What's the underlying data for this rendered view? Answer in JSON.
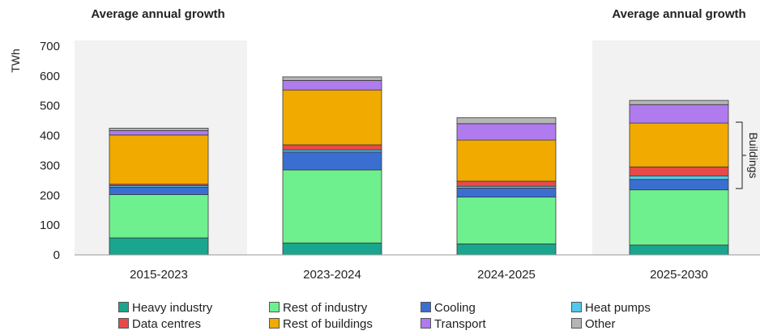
{
  "header_notes": {
    "left": "Average annual growth",
    "right": "Average annual growth"
  },
  "bracket_label": "Buildings",
  "chart_data": {
    "type": "bar",
    "stacked": true,
    "categories": [
      "2015-2023",
      "2023-2024",
      "2024-2025",
      "2025-2030"
    ],
    "ylabel": "TWh",
    "ylim": [
      0,
      700
    ],
    "yticks": [
      0,
      100,
      200,
      300,
      400,
      500,
      600,
      700
    ],
    "grid": false,
    "legend_position": "bottom",
    "series": [
      {
        "name": "Heavy industry",
        "color": "#1aa58e",
        "values": [
          57,
          40,
          37,
          33
        ]
      },
      {
        "name": "Rest of industry",
        "color": "#6ef08f",
        "values": [
          145,
          245,
          157,
          185
        ]
      },
      {
        "name": "Cooling",
        "color": "#3a6fd1",
        "values": [
          25,
          60,
          30,
          35
        ]
      },
      {
        "name": "Heat pumps",
        "color": "#53c8ea",
        "values": [
          5,
          7,
          6,
          12
        ]
      },
      {
        "name": "Data centres",
        "color": "#e84a4a",
        "values": [
          5,
          17,
          17,
          30
        ]
      },
      {
        "name": "Rest of buildings",
        "color": "#f0aa00",
        "values": [
          165,
          184,
          138,
          147
        ]
      },
      {
        "name": "Transport",
        "color": "#b07bef",
        "values": [
          15,
          32,
          55,
          62
        ]
      },
      {
        "name": "Other",
        "color": "#b5b5b5",
        "values": [
          8,
          12,
          20,
          14
        ]
      }
    ]
  }
}
